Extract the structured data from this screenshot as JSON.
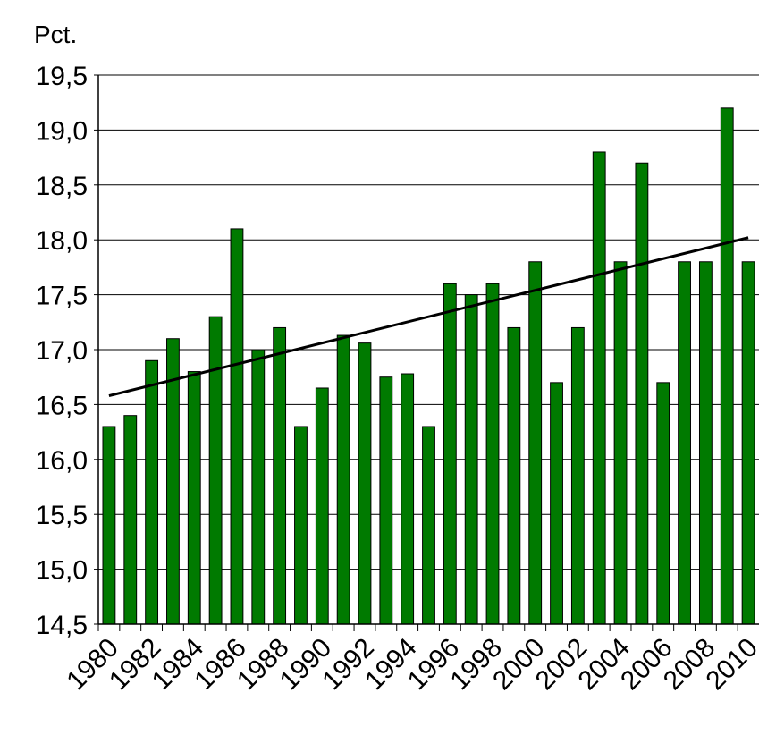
{
  "chart_data": {
    "type": "bar",
    "title": "Pct.",
    "categories": [
      "1980",
      null,
      "1982",
      null,
      "1984",
      null,
      "1986",
      null,
      "1988",
      null,
      "1990",
      null,
      "1992",
      null,
      "1994",
      null,
      "1996",
      null,
      "1998",
      null,
      "2000",
      null,
      "2002",
      null,
      "2004",
      null,
      "2006",
      null,
      "2008",
      null,
      "2010"
    ],
    "values": [
      16.3,
      16.4,
      16.9,
      17.1,
      16.8,
      17.3,
      18.1,
      17.0,
      17.2,
      16.3,
      16.65,
      17.13,
      17.06,
      16.75,
      16.78,
      16.3,
      17.6,
      17.5,
      17.6,
      17.2,
      17.8,
      16.7,
      17.2,
      18.8,
      17.8,
      18.7,
      16.7,
      17.8,
      17.8,
      19.2,
      17.8
    ],
    "color": "#007a00",
    "trend": {
      "values": [
        16.58,
        18.02
      ],
      "color": "#000000"
    },
    "ylim": [
      14.5,
      19.5
    ],
    "yticks": [
      {
        "value": 14.5,
        "label": "14,5"
      },
      {
        "value": 15,
        "label": "15,0"
      },
      {
        "value": 15.5,
        "label": "15,5"
      },
      {
        "value": 16,
        "label": "16,0"
      },
      {
        "value": 16.5,
        "label": "16,5"
      },
      {
        "value": 17,
        "label": "17,0"
      },
      {
        "value": 17.5,
        "label": "17,5"
      },
      {
        "value": 18,
        "label": "18,0"
      },
      {
        "value": 18.5,
        "label": "18,5"
      },
      {
        "value": 19,
        "label": "19,0"
      },
      {
        "value": 19.5,
        "label": "19,5"
      }
    ],
    "grid": true
  }
}
